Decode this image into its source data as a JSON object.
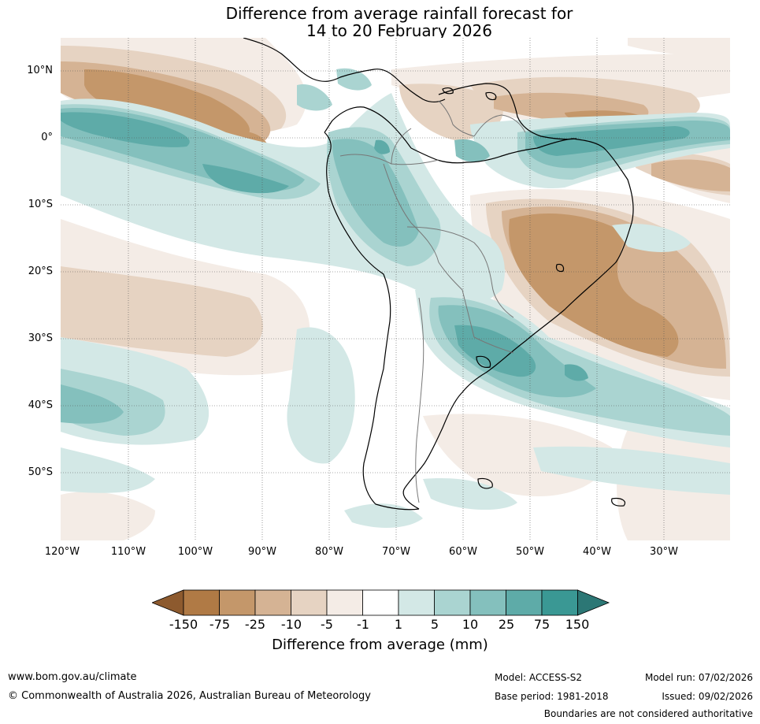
{
  "title": {
    "line1": "Difference from average rainfall forecast for",
    "line2": "14 to 20 February 2026"
  },
  "map": {
    "lat_labels": [
      "10°N",
      "0°",
      "10°S",
      "20°S",
      "30°S",
      "40°S",
      "50°S"
    ],
    "lon_labels": [
      "120°W",
      "110°W",
      "100°W",
      "90°W",
      "80°W",
      "70°W",
      "60°W",
      "50°W",
      "40°W",
      "30°W"
    ]
  },
  "legend": {
    "title": "Difference from average (mm)",
    "tick_labels": [
      "-150",
      "-75",
      "-25",
      "-10",
      "-5",
      "-1",
      "1",
      "5",
      "10",
      "25",
      "75",
      "150"
    ],
    "colors": [
      "#8d5a2e",
      "#b07a45",
      "#c4976a",
      "#d5b394",
      "#e6d3c2",
      "#f4ece6",
      "#ffffff",
      "#d3e8e6",
      "#aad4d1",
      "#84c0bd",
      "#5eaba8",
      "#3a9894",
      "#2c7775"
    ]
  },
  "footer": {
    "url": "www.bom.gov.au/climate",
    "copyright": "© Commonwealth of Australia 2026, Australian Bureau of Meteorology",
    "model": "Model: ACCESS-S2",
    "base_period": "Base period: 1981-2018",
    "model_run": "Model run: 07/02/2026",
    "issued": "Issued: 09/02/2026",
    "boundaries": "Boundaries are not considered authoritative"
  }
}
